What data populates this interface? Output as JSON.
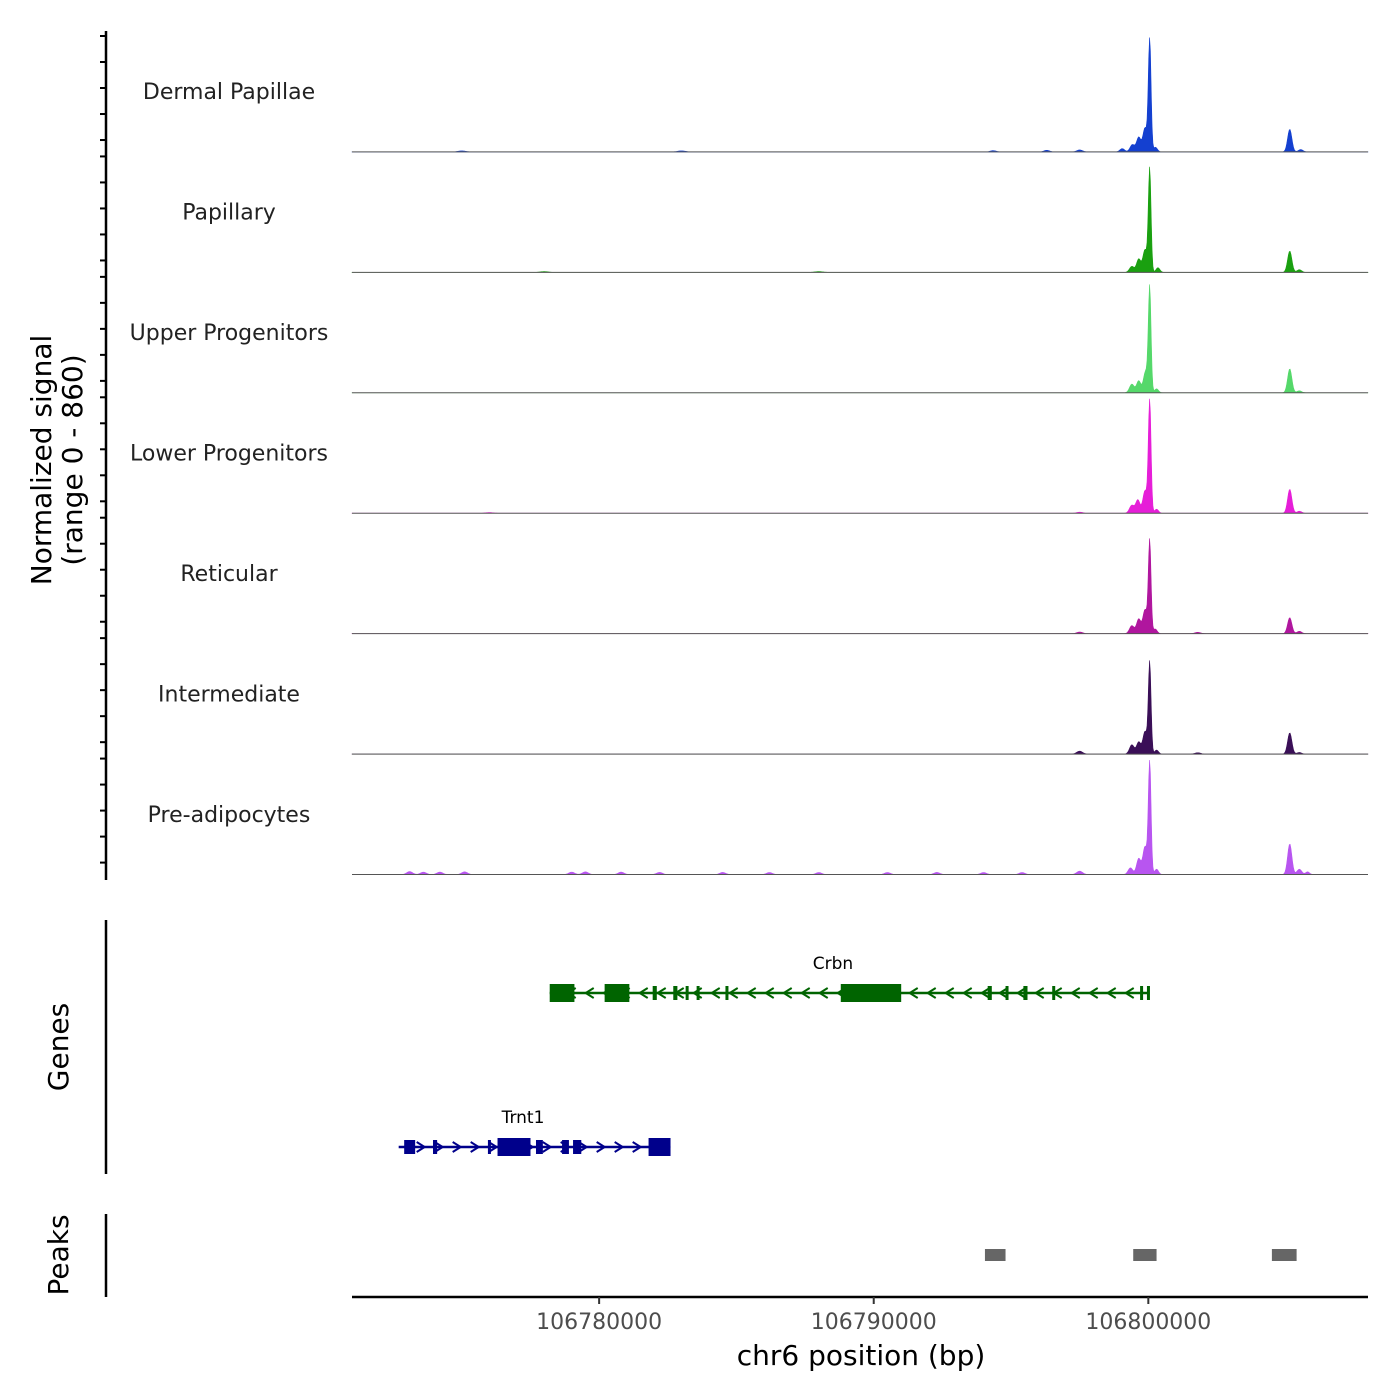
{
  "chart_data": {
    "type": "area",
    "title": "",
    "xlabel": "chr6 position (bp)",
    "ylabel": "Normalized signal\n(range 0 - 860)",
    "ylabel_lines": [
      "Normalized signal",
      "(range 0 - 860)"
    ],
    "genes_label": "Genes",
    "peaks_label": "Peaks",
    "xlim": [
      106771000,
      106808000
    ],
    "ylim": [
      0,
      860
    ],
    "x_ticks": [
      106780000,
      106790000,
      106800000
    ],
    "x_tick_labels": [
      "106780000",
      "106790000",
      "106800000"
    ],
    "tracks": [
      {
        "name": "Dermal Papillae",
        "color": "#1440d0",
        "peaks": [
          {
            "pos": 106800050,
            "height": 860,
            "width": 70
          },
          {
            "pos": 106799880,
            "height": 180,
            "width": 110
          },
          {
            "pos": 106799650,
            "height": 110,
            "width": 110
          },
          {
            "pos": 106799420,
            "height": 55,
            "width": 120
          },
          {
            "pos": 106799050,
            "height": 25,
            "width": 120
          },
          {
            "pos": 106800260,
            "height": 35,
            "width": 100
          },
          {
            "pos": 106805150,
            "height": 170,
            "width": 110
          },
          {
            "pos": 106805550,
            "height": 18,
            "width": 120
          },
          {
            "pos": 106794350,
            "height": 10,
            "width": 150
          },
          {
            "pos": 106796300,
            "height": 12,
            "width": 150
          },
          {
            "pos": 106797500,
            "height": 15,
            "width": 150
          },
          {
            "pos": 106775000,
            "height": 8,
            "width": 200
          },
          {
            "pos": 106783000,
            "height": 8,
            "width": 200
          }
        ]
      },
      {
        "name": "Papillary",
        "color": "#1aa010",
        "peaks": [
          {
            "pos": 106800050,
            "height": 780,
            "width": 70
          },
          {
            "pos": 106799880,
            "height": 170,
            "width": 110
          },
          {
            "pos": 106799650,
            "height": 100,
            "width": 110
          },
          {
            "pos": 106799400,
            "height": 45,
            "width": 120
          },
          {
            "pos": 106800350,
            "height": 35,
            "width": 100
          },
          {
            "pos": 106805150,
            "height": 160,
            "width": 110
          },
          {
            "pos": 106805500,
            "height": 20,
            "width": 120
          },
          {
            "pos": 106778000,
            "height": 6,
            "width": 200
          },
          {
            "pos": 106788000,
            "height": 6,
            "width": 200
          }
        ]
      },
      {
        "name": "Upper Progenitors",
        "color": "#55d86a",
        "peaks": [
          {
            "pos": 106800050,
            "height": 790,
            "width": 70
          },
          {
            "pos": 106799900,
            "height": 160,
            "width": 110
          },
          {
            "pos": 106799650,
            "height": 90,
            "width": 110
          },
          {
            "pos": 106799400,
            "height": 65,
            "width": 120
          },
          {
            "pos": 106800300,
            "height": 30,
            "width": 100
          },
          {
            "pos": 106805150,
            "height": 180,
            "width": 110
          },
          {
            "pos": 106805500,
            "height": 15,
            "width": 120
          }
        ]
      },
      {
        "name": "Lower Progenitors",
        "color": "#e61ed8",
        "peaks": [
          {
            "pos": 106800050,
            "height": 860,
            "width": 70
          },
          {
            "pos": 106799880,
            "height": 170,
            "width": 110
          },
          {
            "pos": 106799620,
            "height": 100,
            "width": 110
          },
          {
            "pos": 106799400,
            "height": 60,
            "width": 120
          },
          {
            "pos": 106800300,
            "height": 30,
            "width": 100
          },
          {
            "pos": 106805150,
            "height": 180,
            "width": 110
          },
          {
            "pos": 106805500,
            "height": 15,
            "width": 120
          },
          {
            "pos": 106797500,
            "height": 8,
            "width": 150
          },
          {
            "pos": 106776000,
            "height": 5,
            "width": 200
          }
        ]
      },
      {
        "name": "Reticular",
        "color": "#b0169e",
        "peaks": [
          {
            "pos": 106800050,
            "height": 700,
            "width": 70
          },
          {
            "pos": 106799880,
            "height": 180,
            "width": 110
          },
          {
            "pos": 106799650,
            "height": 110,
            "width": 110
          },
          {
            "pos": 106799400,
            "height": 60,
            "width": 120
          },
          {
            "pos": 106800250,
            "height": 35,
            "width": 100
          },
          {
            "pos": 106805150,
            "height": 120,
            "width": 110
          },
          {
            "pos": 106805500,
            "height": 18,
            "width": 120
          },
          {
            "pos": 106797500,
            "height": 12,
            "width": 150
          },
          {
            "pos": 106801800,
            "height": 10,
            "width": 150
          }
        ]
      },
      {
        "name": "Intermediate",
        "color": "#3a0f57",
        "peaks": [
          {
            "pos": 106800050,
            "height": 690,
            "width": 70
          },
          {
            "pos": 106799880,
            "height": 170,
            "width": 110
          },
          {
            "pos": 106799650,
            "height": 90,
            "width": 110
          },
          {
            "pos": 106799400,
            "height": 70,
            "width": 120
          },
          {
            "pos": 106800300,
            "height": 30,
            "width": 100
          },
          {
            "pos": 106805150,
            "height": 160,
            "width": 110
          },
          {
            "pos": 106805500,
            "height": 12,
            "width": 120
          },
          {
            "pos": 106797500,
            "height": 22,
            "width": 150
          },
          {
            "pos": 106801800,
            "height": 10,
            "width": 150
          }
        ]
      },
      {
        "name": "Pre-adipocytes",
        "color": "#b855f0",
        "peaks": [
          {
            "pos": 106800050,
            "height": 860,
            "width": 70
          },
          {
            "pos": 106799880,
            "height": 210,
            "width": 110
          },
          {
            "pos": 106799650,
            "height": 120,
            "width": 110
          },
          {
            "pos": 106799350,
            "height": 50,
            "width": 120
          },
          {
            "pos": 106800300,
            "height": 40,
            "width": 100
          },
          {
            "pos": 106805150,
            "height": 230,
            "width": 110
          },
          {
            "pos": 106805500,
            "height": 40,
            "width": 120
          },
          {
            "pos": 106805800,
            "height": 20,
            "width": 100
          },
          {
            "pos": 106797500,
            "height": 25,
            "width": 150
          },
          {
            "pos": 106773100,
            "height": 22,
            "width": 150
          },
          {
            "pos": 106773600,
            "height": 18,
            "width": 150
          },
          {
            "pos": 106774200,
            "height": 18,
            "width": 150
          },
          {
            "pos": 106775100,
            "height": 20,
            "width": 150
          },
          {
            "pos": 106779000,
            "height": 18,
            "width": 150
          },
          {
            "pos": 106779500,
            "height": 20,
            "width": 150
          },
          {
            "pos": 106780800,
            "height": 18,
            "width": 150
          },
          {
            "pos": 106782200,
            "height": 16,
            "width": 150
          },
          {
            "pos": 106784500,
            "height": 16,
            "width": 150
          },
          {
            "pos": 106786200,
            "height": 15,
            "width": 150
          },
          {
            "pos": 106788000,
            "height": 15,
            "width": 150
          },
          {
            "pos": 106790500,
            "height": 15,
            "width": 150
          },
          {
            "pos": 106792300,
            "height": 16,
            "width": 150
          },
          {
            "pos": 106794000,
            "height": 15,
            "width": 150
          },
          {
            "pos": 106795400,
            "height": 15,
            "width": 150
          }
        ]
      }
    ],
    "genes": [
      {
        "name": "Crbn",
        "strand": "-",
        "color": "#006400",
        "start": 106778200,
        "end": 106800050,
        "exons": [
          {
            "start": 106778200,
            "end": 106779100,
            "type": "utr"
          },
          {
            "start": 106780200,
            "end": 106781100,
            "type": "utr"
          },
          {
            "start": 106781950,
            "end": 106782100,
            "type": "cds"
          },
          {
            "start": 106782700,
            "end": 106782850,
            "type": "cds"
          },
          {
            "start": 106783150,
            "end": 106783250,
            "type": "cds"
          },
          {
            "start": 106783550,
            "end": 106783650,
            "type": "cds"
          },
          {
            "start": 106784600,
            "end": 106784700,
            "type": "cds"
          },
          {
            "start": 106788800,
            "end": 106791000,
            "type": "utr"
          },
          {
            "start": 106794150,
            "end": 106794300,
            "type": "cds"
          },
          {
            "start": 106794800,
            "end": 106794900,
            "type": "cds"
          },
          {
            "start": 106795450,
            "end": 106795600,
            "type": "cds"
          },
          {
            "start": 106796500,
            "end": 106796600,
            "type": "cds"
          },
          {
            "start": 106799700,
            "end": 106799750,
            "type": "cds"
          },
          {
            "start": 106799950,
            "end": 106800050,
            "type": "cds"
          }
        ]
      },
      {
        "name": "Trnt1",
        "strand": "+",
        "color": "#00008b",
        "start": 106772700,
        "end": 106782600,
        "exons": [
          {
            "start": 106772900,
            "end": 106773300,
            "type": "cds"
          },
          {
            "start": 106773950,
            "end": 106774100,
            "type": "cds"
          },
          {
            "start": 106775950,
            "end": 106776050,
            "type": "cds"
          },
          {
            "start": 106776300,
            "end": 106777500,
            "type": "utr"
          },
          {
            "start": 106777700,
            "end": 106777950,
            "type": "cds"
          },
          {
            "start": 106778650,
            "end": 106778900,
            "type": "cds"
          },
          {
            "start": 106779050,
            "end": 106779350,
            "type": "cds"
          },
          {
            "start": 106781800,
            "end": 106782600,
            "type": "utr"
          }
        ]
      }
    ],
    "peak_regions": [
      {
        "start": 106794050,
        "end": 106794800
      },
      {
        "start": 106799450,
        "end": 106800300
      },
      {
        "start": 106804500,
        "end": 106805400
      }
    ]
  }
}
